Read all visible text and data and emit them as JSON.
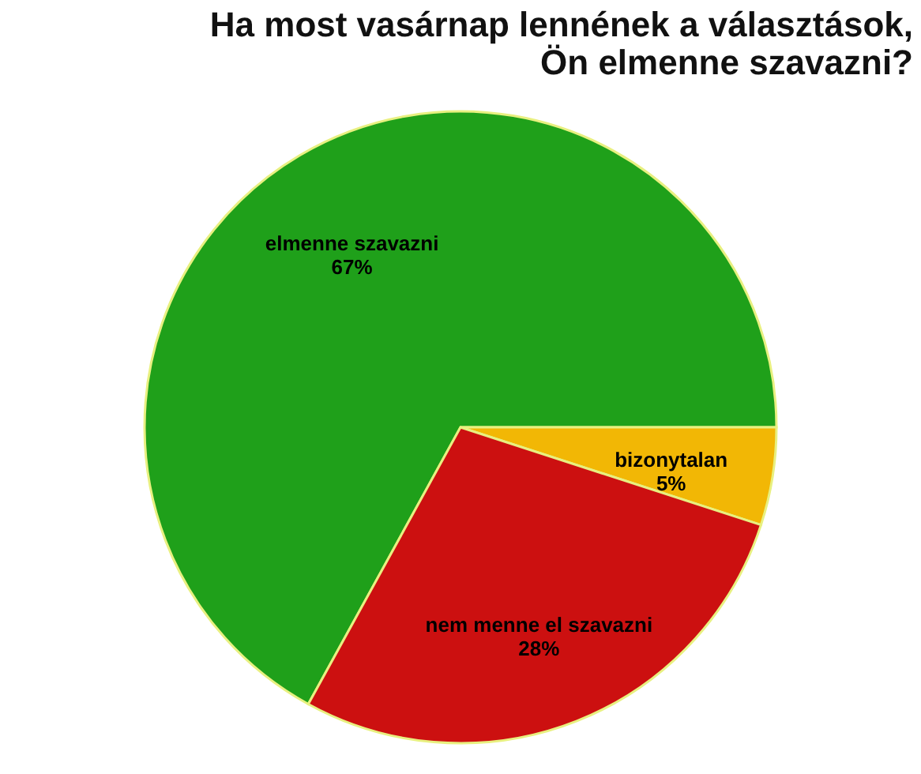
{
  "chart_data": {
    "type": "pie",
    "title": [
      "Ha most vasárnap lennének a választások,",
      "Ön elmenne szavazni?"
    ],
    "categories": [
      "elmenne szavazni",
      "bizonytalan",
      "nem menne el szavazni"
    ],
    "values": [
      67,
      5,
      28
    ],
    "value_labels": [
      "67%",
      "5%",
      "28%"
    ],
    "colors": [
      "#1fa01a",
      "#f2b705",
      "#cc1010"
    ],
    "legend": false
  }
}
